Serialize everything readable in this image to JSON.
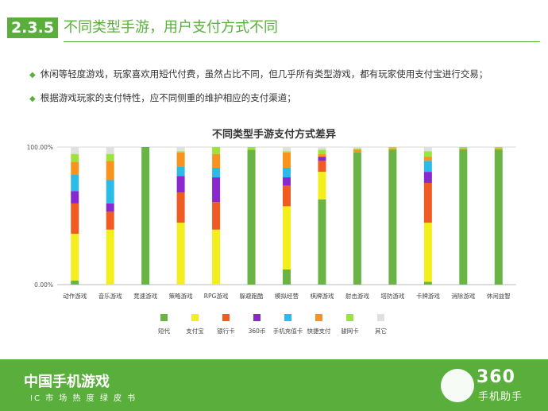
{
  "header": {
    "section_number": "2.3.5",
    "title": "不同类型手游，用户支付方式不同"
  },
  "bullets": [
    "休闲等轻度游戏，玩家喜欢用短代付费，虽然占比不同，但几乎所有类型游戏，都有玩家使用支付宝进行交易；",
    "根据游戏玩家的支付特性，应不同侧重的维护相应的支付渠道；"
  ],
  "footer": {
    "title": "中国手机游戏",
    "subtitle": "IC  市  场  热  度  绿  皮  书",
    "logo_text": "360",
    "logo_sub": "手机助手"
  },
  "colors": {
    "短代": "#6ab445",
    "支付宝": "#f4ee1c",
    "银行卡": "#f15a22",
    "360币": "#8a28cf",
    "手机充值卡": "#2bbbe8",
    "快捷支付": "#f7941d",
    "骏网卡": "#9de33b",
    "其它": "#e0e0e0"
  },
  "chart_data": {
    "type": "bar",
    "stacked": true,
    "title": "不同类型手游支付方式差异",
    "ylim": [
      0,
      100
    ],
    "yticks": [
      "0.00%",
      "100.00%"
    ],
    "legend_position": "bottom",
    "categories": [
      "动作游戏",
      "音乐游戏",
      "竞速游戏",
      "策略游戏",
      "RPG游戏",
      "躲避跑酷",
      "模拟经营",
      "棋牌游戏",
      "射击游戏",
      "塔防游戏",
      "卡牌游戏",
      "消除游戏",
      "休闲益智"
    ],
    "series": [
      {
        "name": "短代",
        "values": [
          3,
          0,
          100,
          0,
          0,
          98,
          11,
          62,
          96,
          98,
          2,
          98,
          98
        ]
      },
      {
        "name": "支付宝",
        "values": [
          34,
          40,
          0,
          45,
          40,
          0,
          46,
          20,
          0,
          0,
          43,
          0,
          0
        ]
      },
      {
        "name": "银行卡",
        "values": [
          22,
          13,
          0,
          22,
          20,
          0,
          15,
          8,
          0,
          0,
          29,
          0,
          0
        ]
      },
      {
        "name": "360币",
        "values": [
          9,
          6,
          0,
          12,
          18,
          0,
          6,
          3,
          0,
          0,
          8,
          0,
          0
        ]
      },
      {
        "name": "手机充值卡",
        "values": [
          12,
          17,
          0,
          7,
          7,
          0,
          7,
          0,
          0,
          0,
          8,
          0,
          0
        ]
      },
      {
        "name": "快捷支付",
        "values": [
          9,
          14,
          0,
          10,
          10,
          0,
          11,
          2,
          2,
          1,
          3,
          1,
          1
        ]
      },
      {
        "name": "骏网卡",
        "values": [
          6,
          5,
          0,
          1,
          5,
          2,
          1,
          3,
          1,
          1,
          4,
          1,
          1
        ]
      },
      {
        "name": "其它",
        "values": [
          5,
          5,
          0,
          3,
          0,
          0,
          3,
          2,
          1,
          0,
          3,
          0,
          0
        ]
      }
    ]
  }
}
